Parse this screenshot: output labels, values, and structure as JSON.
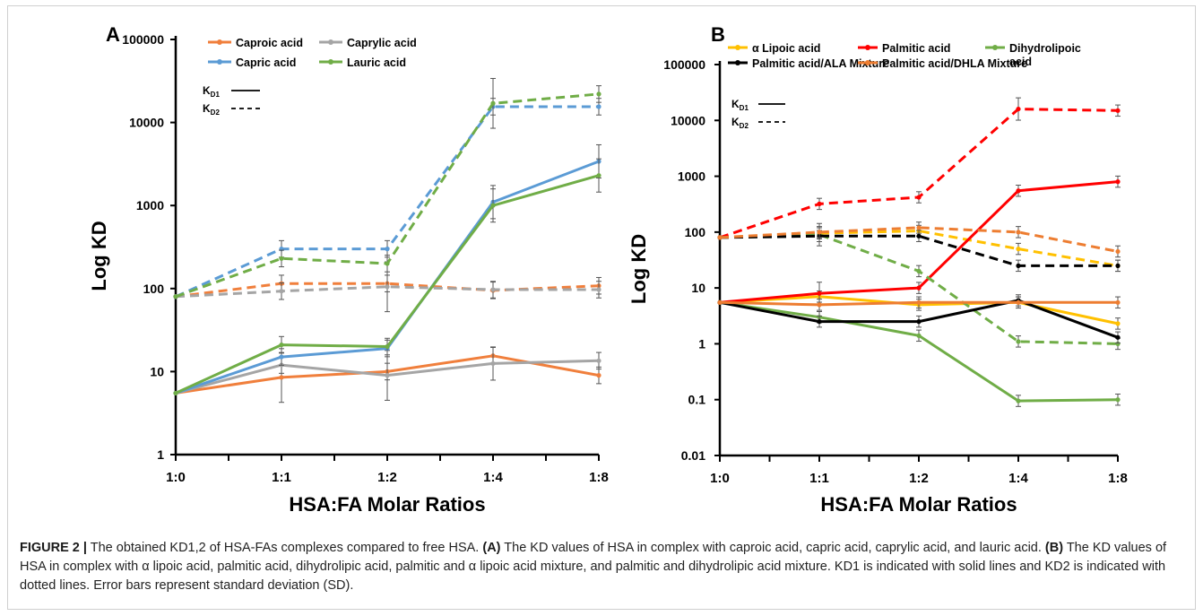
{
  "figure": {
    "caption": {
      "label": "FIGURE 2 |",
      "intro": " The obtained KD1,2 of HSA-FAs complexes compared to free HSA. ",
      "a_tag": "(A)",
      "a_text": " The KD values of HSA in complex with caproic acid, capric acid, caprylic acid, and lauric acid. ",
      "b_tag": "(B)",
      "b_text": " The KD values of HSA in complex with α lipoic acid, palmitic acid, dihydrolipic acid, palmitic and α lipoic acid mixture, and palmitic and dihydrolipic acid mixture. KD1 is indicated with solid lines and KD2 is indicated with dotted lines. Error bars represent standard deviation (SD)."
    }
  },
  "chart_data": [
    {
      "panel": "A",
      "type": "line",
      "scale": "log",
      "ylabel": "Log KD",
      "xlabel": "HSA:FA Molar Ratios",
      "categories": [
        "1:0",
        "1:1",
        "1:2",
        "1:4",
        "1:8"
      ],
      "yticks": [
        "1",
        "10",
        "100",
        "1000",
        "10000",
        "100000"
      ],
      "ylim": [
        1,
        100000
      ],
      "line_key": [
        {
          "label": "K",
          "sub": "D1",
          "style": "solid"
        },
        {
          "label": "K",
          "sub": "D2",
          "style": "dashed"
        }
      ],
      "series": [
        {
          "name": "Caproic acid",
          "color": "#f07f3c",
          "kd1": [
            5.5,
            8.5,
            10,
            15.5,
            9
          ],
          "kd2": [
            80,
            115,
            115,
            95,
            108
          ],
          "err1": [
            0,
            0.3,
            0.1,
            0.1,
            0.1
          ],
          "err2": [
            0,
            0.1,
            0.1,
            0.1,
            0.1
          ]
        },
        {
          "name": "Caprylic acid",
          "color": "#a5a5a5",
          "kd1": [
            5.5,
            12,
            9,
            12.5,
            13.5
          ],
          "kd2": [
            80,
            93,
            105,
            97,
            97
          ],
          "err1": [
            0,
            0.1,
            0.3,
            0.2,
            0.1
          ],
          "err2": [
            0,
            0.1,
            0.3,
            0.1,
            0.1
          ]
        },
        {
          "name": "Capric acid",
          "color": "#5b9bd5",
          "kd1": [
            5.5,
            15,
            19,
            1100,
            3400
          ],
          "kd2": [
            80,
            300,
            300,
            15500,
            15500
          ],
          "err1": [
            0,
            0.1,
            0.1,
            0.2,
            0.2
          ],
          "err2": [
            0,
            0.1,
            0.1,
            0.1,
            0.1
          ]
        },
        {
          "name": "Lauric acid",
          "color": "#70ad47",
          "kd1": [
            5.5,
            21,
            20,
            1000,
            2300
          ],
          "kd2": [
            80,
            230,
            200,
            17000,
            22000
          ],
          "err1": [
            0,
            0.1,
            0.1,
            0.2,
            0.2
          ],
          "err2": [
            0,
            0.1,
            0.1,
            0.3,
            0.1
          ]
        }
      ]
    },
    {
      "panel": "B",
      "type": "line",
      "scale": "log",
      "ylabel": "Log KD",
      "xlabel": "HSA:FA Molar Ratios",
      "categories": [
        "1:0",
        "1:1",
        "1:2",
        "1:4",
        "1:8"
      ],
      "yticks": [
        "0.01",
        "0.1",
        "1",
        "10",
        "100",
        "1000",
        "10000",
        "100000"
      ],
      "ylim": [
        0.01,
        100000
      ],
      "line_key": [
        {
          "label": "K",
          "sub": "D1",
          "style": "solid"
        },
        {
          "label": "K",
          "sub": "D2",
          "style": "dashed"
        }
      ],
      "series": [
        {
          "name": "α Lipoic  acid",
          "color": "#ffc000",
          "kd1": [
            5.5,
            7,
            5,
            5.5,
            2.3
          ],
          "kd2": [
            80,
            95,
            105,
            50,
            25
          ],
          "err1": [
            0,
            0.1,
            0.1,
            0.1,
            0.1
          ],
          "err2": [
            0,
            0.1,
            0.1,
            0.1,
            0.1
          ]
        },
        {
          "name": "Palmitic acid",
          "color": "#ff0000",
          "kd1": [
            5.5,
            8,
            10,
            550,
            800
          ],
          "kd2": [
            80,
            320,
            420,
            16000,
            15000
          ],
          "err1": [
            0,
            0.2,
            0.1,
            0.1,
            0.1
          ],
          "err2": [
            0,
            0.1,
            0.1,
            0.2,
            0.1
          ]
        },
        {
          "name": "Dihydrolipoic acid",
          "color": "#70ad47",
          "kd1": [
            5.5,
            3,
            1.4,
            0.095,
            0.1
          ],
          "kd2": [
            80,
            90,
            20,
            1.1,
            1
          ],
          "err1": [
            0,
            0.1,
            0.1,
            0.1,
            0.1
          ],
          "err2": [
            0,
            0.2,
            0.1,
            0.1,
            0.1
          ]
        },
        {
          "name": "Palmitic acid/ALA Mixture",
          "color": "#000000",
          "kd1": [
            5.5,
            2.5,
            2.5,
            6,
            1.3
          ],
          "kd2": [
            80,
            85,
            85,
            25,
            25
          ],
          "err1": [
            0,
            0.1,
            0.1,
            0.1,
            0.1
          ],
          "err2": [
            0,
            0.1,
            0.1,
            0.1,
            0.1
          ]
        },
        {
          "name": "Palmitic acid/DHLA Mixture",
          "color": "#ed7d31",
          "kd1": [
            5.5,
            5,
            5.5,
            5.5,
            5.5
          ],
          "kd2": [
            80,
            100,
            120,
            100,
            45
          ],
          "err1": [
            0,
            0.1,
            0.1,
            0.1,
            0.1
          ],
          "err2": [
            0,
            0.1,
            0.1,
            0.1,
            0.1
          ]
        }
      ]
    }
  ]
}
